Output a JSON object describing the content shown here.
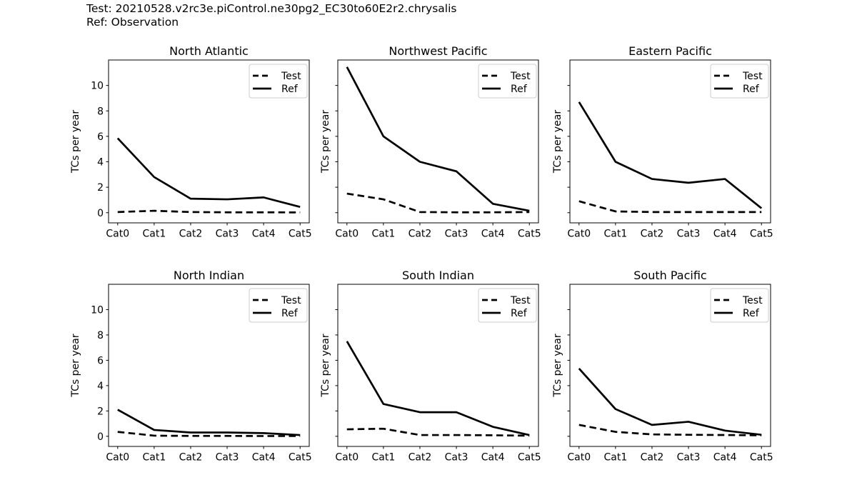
{
  "header": {
    "test_line": "Test: 20210528.v2rc3e.piControl.ne30pg2_EC30to60E2r2.chrysalis",
    "ref_line": "Ref: Observation"
  },
  "legend": {
    "entries": [
      {
        "label": "Test",
        "style": "dashed"
      },
      {
        "label": "Ref",
        "style": "solid"
      }
    ]
  },
  "colors": {
    "line": "#000000",
    "text": "#000000",
    "background": "#ffffff",
    "legend_border": "#cccccc"
  },
  "chart_data": [
    {
      "type": "line",
      "title": "North Atlantic",
      "ylabel": "TCs per year",
      "categories": [
        "Cat0",
        "Cat1",
        "Cat2",
        "Cat3",
        "Cat4",
        "Cat5"
      ],
      "yticks": [
        0,
        2,
        4,
        6,
        8,
        10
      ],
      "ylim": [
        -0.8,
        12.0
      ],
      "show_ytick_labels": true,
      "grid": false,
      "legend_position": "upper right",
      "series": [
        {
          "name": "Test",
          "style": "dashed",
          "values": [
            0.05,
            0.15,
            0.05,
            0.03,
            0.03,
            0.02
          ]
        },
        {
          "name": "Ref",
          "style": "solid",
          "values": [
            5.85,
            2.8,
            1.1,
            1.05,
            1.2,
            0.45
          ]
        }
      ]
    },
    {
      "type": "line",
      "title": "Northwest Pacific",
      "ylabel": "TCs per year",
      "categories": [
        "Cat0",
        "Cat1",
        "Cat2",
        "Cat3",
        "Cat4",
        "Cat5"
      ],
      "yticks": [
        0,
        2,
        4,
        6,
        8,
        10
      ],
      "ylim": [
        -0.8,
        12.0
      ],
      "show_ytick_labels": false,
      "grid": false,
      "legend_position": "upper right",
      "series": [
        {
          "name": "Test",
          "style": "dashed",
          "values": [
            1.5,
            1.05,
            0.05,
            0.03,
            0.03,
            0.05
          ]
        },
        {
          "name": "Ref",
          "style": "solid",
          "values": [
            11.45,
            6.0,
            4.0,
            3.25,
            0.7,
            0.15
          ]
        }
      ]
    },
    {
      "type": "line",
      "title": "Eastern Pacific",
      "ylabel": "TCs per year",
      "categories": [
        "Cat0",
        "Cat1",
        "Cat2",
        "Cat3",
        "Cat4",
        "Cat5"
      ],
      "yticks": [
        0,
        2,
        4,
        6,
        8,
        10
      ],
      "ylim": [
        -0.8,
        12.0
      ],
      "show_ytick_labels": false,
      "grid": false,
      "legend_position": "upper right",
      "series": [
        {
          "name": "Test",
          "style": "dashed",
          "values": [
            0.9,
            0.1,
            0.05,
            0.05,
            0.05,
            0.05
          ]
        },
        {
          "name": "Ref",
          "style": "solid",
          "values": [
            8.7,
            4.0,
            2.65,
            2.35,
            2.65,
            0.35
          ]
        }
      ]
    },
    {
      "type": "line",
      "title": "North Indian",
      "ylabel": "TCs per year",
      "categories": [
        "Cat0",
        "Cat1",
        "Cat2",
        "Cat3",
        "Cat4",
        "Cat5"
      ],
      "yticks": [
        0,
        2,
        4,
        6,
        8,
        10
      ],
      "ylim": [
        -0.8,
        12.0
      ],
      "show_ytick_labels": true,
      "grid": false,
      "legend_position": "upper right",
      "series": [
        {
          "name": "Test",
          "style": "dashed",
          "values": [
            0.35,
            0.05,
            0.03,
            0.03,
            0.02,
            0.02
          ]
        },
        {
          "name": "Ref",
          "style": "solid",
          "values": [
            2.1,
            0.5,
            0.3,
            0.3,
            0.25,
            0.1
          ]
        }
      ]
    },
    {
      "type": "line",
      "title": "South Indian",
      "ylabel": "TCs per year",
      "categories": [
        "Cat0",
        "Cat1",
        "Cat2",
        "Cat3",
        "Cat4",
        "Cat5"
      ],
      "yticks": [
        0,
        2,
        4,
        6,
        8,
        10
      ],
      "ylim": [
        -0.8,
        12.0
      ],
      "show_ytick_labels": false,
      "grid": false,
      "legend_position": "upper right",
      "series": [
        {
          "name": "Test",
          "style": "dashed",
          "values": [
            0.55,
            0.6,
            0.1,
            0.1,
            0.08,
            0.05
          ]
        },
        {
          "name": "Ref",
          "style": "solid",
          "values": [
            7.5,
            2.55,
            1.9,
            1.9,
            0.75,
            0.1
          ]
        }
      ]
    },
    {
      "type": "line",
      "title": "South Pacific",
      "ylabel": "TCs per year",
      "categories": [
        "Cat0",
        "Cat1",
        "Cat2",
        "Cat3",
        "Cat4",
        "Cat5"
      ],
      "yticks": [
        0,
        2,
        4,
        6,
        8,
        10
      ],
      "ylim": [
        -0.8,
        12.0
      ],
      "show_ytick_labels": false,
      "grid": false,
      "legend_position": "upper right",
      "series": [
        {
          "name": "Test",
          "style": "dashed",
          "values": [
            0.9,
            0.35,
            0.15,
            0.12,
            0.1,
            0.08
          ]
        },
        {
          "name": "Ref",
          "style": "solid",
          "values": [
            5.35,
            2.15,
            0.9,
            1.15,
            0.45,
            0.12
          ]
        }
      ]
    }
  ]
}
